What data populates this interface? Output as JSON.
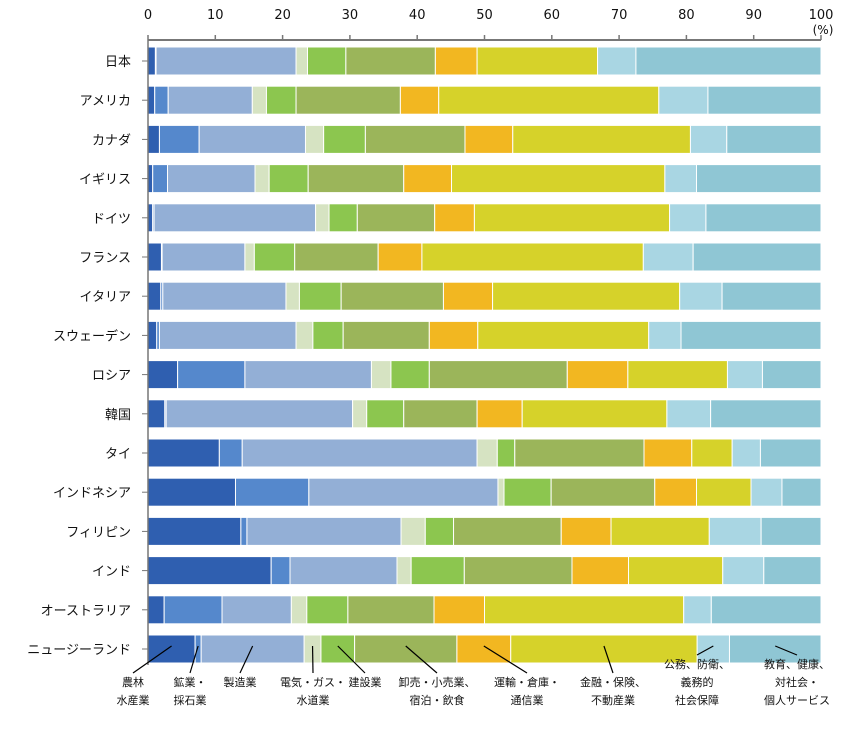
{
  "chart_data": {
    "type": "bar",
    "orientation": "horizontal",
    "stacked": true,
    "unit": "(%)",
    "xlim": [
      0,
      100
    ],
    "xticks": [
      "0",
      "10",
      "20",
      "30",
      "40",
      "50",
      "60",
      "70",
      "80",
      "90",
      "100"
    ],
    "categories": [
      "日本",
      "アメリカ",
      "カナダ",
      "イギリス",
      "ドイツ",
      "フランス",
      "イタリア",
      "スウェーデン",
      "ロシア",
      "韓国",
      "タイ",
      "インドネシア",
      "フィリピン",
      "インド",
      "オーストラリア",
      "ニュージーランド"
    ],
    "series": [
      {
        "name": "農林\n水産業",
        "color": "#2f5fb0",
        "values": [
          1.1,
          1.0,
          1.7,
          0.7,
          0.7,
          2.0,
          1.9,
          1.3,
          4.4,
          2.5,
          10.6,
          13.0,
          13.8,
          18.3,
          2.4,
          7.0
        ]
      },
      {
        "name": "鉱業・\n採石業",
        "color": "#5588cc",
        "values": [
          0.1,
          2.0,
          5.9,
          2.2,
          0.2,
          0.1,
          0.3,
          0.4,
          10.0,
          0.2,
          3.4,
          10.9,
          0.9,
          2.8,
          8.6,
          0.9
        ]
      },
      {
        "name": "製造業",
        "color": "#93afd6",
        "values": [
          20.8,
          12.5,
          15.8,
          13.0,
          24.0,
          12.3,
          18.3,
          20.3,
          18.8,
          27.7,
          34.9,
          28.1,
          22.9,
          15.9,
          10.3,
          15.3
        ]
      },
      {
        "name": "電気・ガス・\n水道業",
        "color": "#d6e3c2",
        "values": [
          1.7,
          2.1,
          2.7,
          2.1,
          2.0,
          1.4,
          2.0,
          2.5,
          2.9,
          2.1,
          3.0,
          0.9,
          3.6,
          2.1,
          2.3,
          2.5
        ]
      },
      {
        "name": "建設業",
        "color": "#8cc64f",
        "values": [
          5.7,
          4.4,
          6.2,
          5.8,
          4.2,
          6.0,
          6.2,
          4.5,
          5.7,
          5.5,
          2.6,
          7.0,
          4.2,
          7.9,
          6.1,
          5.0
        ]
      },
      {
        "name": "卸売・小売業、\n宿泊・飲食",
        "color": "#9bb55a",
        "values": [
          13.3,
          15.5,
          14.8,
          14.2,
          11.5,
          12.4,
          15.2,
          12.8,
          20.5,
          10.9,
          19.2,
          15.4,
          16.0,
          16.0,
          12.8,
          15.2
        ]
      },
      {
        "name": "運輸・倉庫・\n通信業",
        "color": "#f2b721",
        "values": [
          6.2,
          5.7,
          7.1,
          7.1,
          5.9,
          6.5,
          7.3,
          7.2,
          9.0,
          6.7,
          7.1,
          6.2,
          7.4,
          8.4,
          7.5,
          8.0
        ]
      },
      {
        "name": "金融・保険、\n不動産業",
        "color": "#d6d22a",
        "values": [
          17.9,
          32.7,
          26.4,
          31.7,
          29.0,
          32.9,
          27.8,
          25.4,
          14.8,
          21.5,
          6.0,
          8.1,
          14.6,
          14.0,
          29.6,
          27.7
        ]
      },
      {
        "name": "公務、防衛、\n義務的\n社会保障",
        "color": "#a9d6e3",
        "values": [
          5.7,
          7.3,
          5.4,
          4.7,
          5.4,
          7.4,
          6.3,
          4.8,
          5.2,
          6.5,
          4.2,
          4.6,
          7.7,
          6.1,
          4.1,
          4.8
        ]
      },
      {
        "name": "教育、健康、\n対社会・\n個人サービス",
        "color": "#8fc6d4",
        "values": [
          27.5,
          16.8,
          14.0,
          18.5,
          17.1,
          19.0,
          14.7,
          20.8,
          8.7,
          16.4,
          9.0,
          5.8,
          8.9,
          8.5,
          16.3,
          13.6
        ]
      }
    ]
  }
}
